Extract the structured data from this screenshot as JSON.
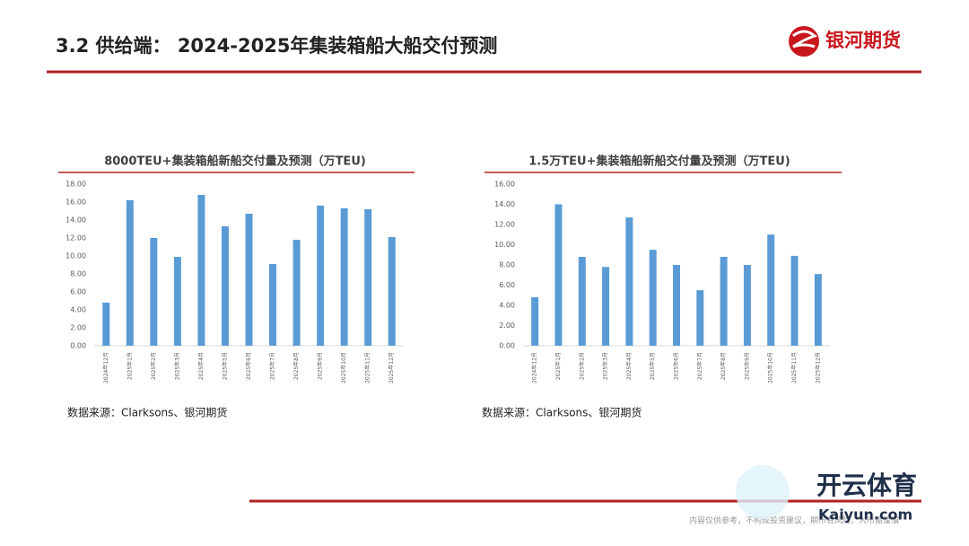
{
  "header": {
    "title": "3.2 供给端： 2024-2025年集装箱船大船交付预测",
    "logo": "银河期货"
  },
  "chart_data": [
    {
      "type": "bar",
      "title": "8000TEU+集装箱船新船交付量及预测（万TEU)",
      "source": "数据来源：Clarksons、银河期货",
      "color": "#5b9bd5",
      "categories": [
        "2024年12月",
        "2025年1月",
        "2025年2月",
        "2025年3月",
        "2025年4月",
        "2025年5月",
        "2025年6月",
        "2025年7月",
        "2025年8月",
        "2025年9月",
        "2025年10月",
        "2025年11月",
        "2025年12月"
      ],
      "values": [
        4.8,
        16.2,
        12.0,
        9.9,
        16.8,
        13.3,
        14.7,
        9.1,
        11.8,
        15.6,
        15.3,
        15.2,
        12.1
      ],
      "ylim": [
        0,
        18
      ],
      "yticks": [
        {
          "value": 0,
          "label": "0.00"
        },
        {
          "value": 2,
          "label": "2.00"
        },
        {
          "value": 4,
          "label": "4.00"
        },
        {
          "value": 6,
          "label": "6.00"
        },
        {
          "value": 8,
          "label": "8.00"
        },
        {
          "value": 10,
          "label": "10.00"
        },
        {
          "value": 12,
          "label": "12.00"
        },
        {
          "value": 14,
          "label": "14.00"
        },
        {
          "value": 16,
          "label": "16.00"
        },
        {
          "value": 18,
          "label": "18.00"
        }
      ]
    },
    {
      "type": "bar",
      "title": "1.5万TEU+集装箱船新船交付量及预测（万TEU)",
      "source": "数据来源：Clarksons、银河期货",
      "color": "#5b9bd5",
      "categories": [
        "2024年12月",
        "2025年1月",
        "2025年2月",
        "2025年3月",
        "2025年4月",
        "2025年5月",
        "2025年6月",
        "2025年7月",
        "2025年8月",
        "2025年9月",
        "2025年10月",
        "2025年11月",
        "2025年12月"
      ],
      "values": [
        4.8,
        14.0,
        8.8,
        7.8,
        12.7,
        9.5,
        8.0,
        5.5,
        8.8,
        8.0,
        11.0,
        8.9,
        7.1
      ],
      "ylim": [
        0,
        16
      ],
      "yticks": [
        {
          "value": 0,
          "label": "0.00"
        },
        {
          "value": 2,
          "label": "2.00"
        },
        {
          "value": 4,
          "label": "4.00"
        },
        {
          "value": 6,
          "label": "6.00"
        },
        {
          "value": 8,
          "label": "8.00"
        },
        {
          "value": 10,
          "label": "10.00"
        },
        {
          "value": 12,
          "label": "12.00"
        },
        {
          "value": 14,
          "label": "14.00"
        },
        {
          "value": 16,
          "label": "16.00"
        }
      ]
    }
  ],
  "footer": {
    "disclaimer": "内容仅供参考，不构成投资建议，期市有风险，入市需谨慎"
  },
  "watermark": {
    "name": "开云体育",
    "url": "Kaiyun.com"
  }
}
